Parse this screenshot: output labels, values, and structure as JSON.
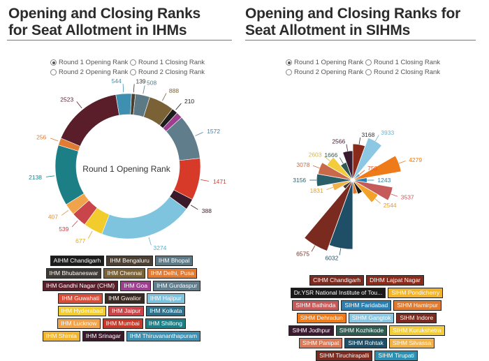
{
  "chart_data": [
    {
      "type": "donut",
      "title": "Opening and Closing Ranks for Seat Allotment in IHMs",
      "title_lines": [
        "Opening and Closing Ranks",
        "for Seat Allotment in IHMs"
      ],
      "center_label": "Round 1 Opening Rank",
      "options": [
        {
          "label": "Round 1 Opening Rank",
          "selected": true
        },
        {
          "label": "Round 1 Closing Rank",
          "selected": false
        },
        {
          "label": "Round 2 Opening Rank",
          "selected": false
        },
        {
          "label": "Round 2 Closing Rank",
          "selected": false
        }
      ],
      "series": [
        {
          "name": "IHM Bengaluru",
          "value": 139,
          "color": "#4a3f30"
        },
        {
          "name": "IHM Bhopal",
          "value": 508,
          "color": "#5b7a85"
        },
        {
          "name": "IHM Chennai",
          "value": 888,
          "color": "#7a6236"
        },
        {
          "name": "AIHM Chandigarh",
          "value": 210,
          "color": "#1c1c1c"
        },
        {
          "name": "IHM Goa",
          "value": 220,
          "color": "#9c3f8e"
        },
        {
          "name": "IHM Gurdaspur",
          "value": 1572,
          "color": "#5f7d8b"
        },
        {
          "name": "IHM Mumbai",
          "value": 1471,
          "color": "#d83a2a"
        },
        {
          "name": "IHM Srinagar",
          "value": 388,
          "color": "#3a1a2a"
        },
        {
          "name": "IHM Thiruvananthapuram",
          "value": 3274,
          "color": "#7fc4df"
        },
        {
          "name": "IHM Hajipur",
          "value": 677,
          "color": "#f2cb2c"
        },
        {
          "name": "IHM Jaipur",
          "value": 539,
          "color": "#c9454a"
        },
        {
          "name": "IHM Lucknow",
          "value": 407,
          "color": "#f0a34a"
        },
        {
          "name": "IHM Shillong",
          "value": 2138,
          "color": "#1c7f86"
        },
        {
          "name": "IHM Delhi, Pusa",
          "value": 256,
          "color": "#e27b34"
        },
        {
          "name": "IHM Gandhi Nagar (CHM)",
          "value": 2523,
          "color": "#5a1e2b"
        },
        {
          "name": "IHM Kolkata",
          "value": 544,
          "color": "#3e8fb0"
        }
      ],
      "labels": [
        {
          "text": "139",
          "color": "#333333"
        },
        {
          "text": "508",
          "color": "#5b7a85"
        },
        {
          "text": "888",
          "color": "#7a6236"
        },
        {
          "text": "210",
          "color": "#1c1c1c"
        },
        {
          "text": "1572",
          "color": "#4a7a9a"
        },
        {
          "text": "1471",
          "color": "#d83a2a"
        },
        {
          "text": "388",
          "color": "#3a1a2a"
        },
        {
          "text": "3274",
          "color": "#5aaecb"
        },
        {
          "text": "677",
          "color": "#d9aa20"
        },
        {
          "text": "539",
          "color": "#c9454a"
        },
        {
          "text": "407",
          "color": "#e0903a"
        },
        {
          "text": "2138",
          "color": "#1c7f86"
        },
        {
          "text": "256",
          "color": "#e27b34"
        },
        {
          "text": "2523",
          "color": "#5a1e2b"
        },
        {
          "text": "544",
          "color": "#3e8fb0"
        }
      ],
      "legend": [
        {
          "label": "AIHM Chandigarh",
          "color": "#1c1c1c"
        },
        {
          "label": "IHM Bengaluru",
          "color": "#4a3f30"
        },
        {
          "label": "IHM Bhopal",
          "color": "#5b7a85"
        },
        {
          "label": "IHM Bhubaneswar",
          "color": "#3f3a36"
        },
        {
          "label": "IHM Chennai",
          "color": "#7a6236"
        },
        {
          "label": "IHM Delhi, Pusa",
          "color": "#e27b34"
        },
        {
          "label": "IHM Gandhi Nagar (CHM)",
          "color": "#5a1e2b"
        },
        {
          "label": "IHM Goa",
          "color": "#9c3f8e"
        },
        {
          "label": "IHM Gurdaspur",
          "color": "#5f7d8b"
        },
        {
          "label": "IHM Guwahati",
          "color": "#d94e3b"
        },
        {
          "label": "IHM Gwalior",
          "color": "#3a2a22"
        },
        {
          "label": "IHM Hajipur",
          "color": "#7fc4df"
        },
        {
          "label": "IHM Hyderabad",
          "color": "#f2cb2c"
        },
        {
          "label": "IHM Jaipur",
          "color": "#c9454a"
        },
        {
          "label": "IHM Kolkata",
          "color": "#2e6f8a"
        },
        {
          "label": "IHM Lucknow",
          "color": "#f0a34a"
        },
        {
          "label": "IHM Mumbai",
          "color": "#c63a2a"
        },
        {
          "label": "IHM Shillong",
          "color": "#1c7f86"
        },
        {
          "label": "IHM Shimla",
          "color": "#f2b42c"
        },
        {
          "label": "IHM Srinagar",
          "color": "#3a1a2a"
        },
        {
          "label": "IHM Thiruvananthapuram",
          "color": "#3e8fb0"
        }
      ]
    },
    {
      "type": "polar_area",
      "title": "Opening and Closing Ranks for Seat Allotment in SIHMs",
      "title_lines": [
        "Opening and Closing Ranks for",
        "Seat Allotment in SIHMs"
      ],
      "options": [
        {
          "label": "Round 1 Opening Rank",
          "selected": true
        },
        {
          "label": "Round 1 Closing Rank",
          "selected": false
        },
        {
          "label": "Round 2 Opening Rank",
          "selected": false
        },
        {
          "label": "Round 2 Closing Rank",
          "selected": false
        }
      ],
      "max_value": 6575,
      "series": [
        {
          "name": "DIHM Lajpat Nagar",
          "value": 3168,
          "color": "#8a2a1a"
        },
        {
          "name": "SIHM Gangtok",
          "value": 3933,
          "color": "#8cc8e3"
        },
        {
          "name": "SIHM Faridabad",
          "value": 750,
          "color": "#6a9ab0"
        },
        {
          "name": "SIHM Dehradun",
          "value": 4279,
          "color": "#ef7a1a"
        },
        {
          "name": "SIHM Kozhikode",
          "value": 1243,
          "color": "#2a7fb0"
        },
        {
          "name": "SIHM Panipat",
          "value": 3537,
          "color": "#c45a5a"
        },
        {
          "name": "SIHM Rohtak",
          "value": 2544,
          "color": "#f2a12a"
        },
        {
          "name": "SIHM Jodhpur",
          "value": 1300,
          "color": "#1a1a1a"
        },
        {
          "name": "SIHM Hamirpur",
          "value": 1200,
          "color": "#e07a30"
        },
        {
          "name": "SIHM Tirupati",
          "value": 6032,
          "color": "#1f4f66"
        },
        {
          "name": "SIHM Tiruchirapalli",
          "value": 6575,
          "color": "#7a2a1e"
        },
        {
          "name": "SIHM Indore",
          "value": 1000,
          "color": "#4a3a32"
        },
        {
          "name": "SIHM Kurukshetra",
          "value": 1831,
          "color": "#f2b24a"
        },
        {
          "name": "SIHM Bathinda",
          "value": 3156,
          "color": "#2a5f6a"
        },
        {
          "name": "SIHM Pondicherry",
          "value": 3078,
          "color": "#c86a4a"
        },
        {
          "name": "SIHM Silvassa",
          "value": 2603,
          "color": "#f2cc3a"
        },
        {
          "name": "CIHM Chandigarh",
          "value": 1666,
          "color": "#2f5a52"
        },
        {
          "name": "Dr.YSR National Institute of Tou...",
          "value": 2566,
          "color": "#3a1a2e"
        }
      ],
      "labels": [
        {
          "text": "3168",
          "color": "#333333"
        },
        {
          "text": "3933",
          "color": "#6ab0d0"
        },
        {
          "text": "750",
          "color": "#e05a2a"
        },
        {
          "text": "4279",
          "color": "#ef7a1a"
        },
        {
          "text": "1243",
          "color": "#2a7fb0"
        },
        {
          "text": "3537",
          "color": "#c45a5a"
        },
        {
          "text": "2544",
          "color": "#e89a2a"
        },
        {
          "text": "6032",
          "color": "#1f4f66"
        },
        {
          "text": "6575",
          "color": "#7a2a1e"
        },
        {
          "text": "1831",
          "color": "#e0a030"
        },
        {
          "text": "3156",
          "color": "#2a5f6a"
        },
        {
          "text": "3078",
          "color": "#c86a4a"
        },
        {
          "text": "2603",
          "color": "#e0b82a"
        },
        {
          "text": "1666",
          "color": "#2f5a52"
        },
        {
          "text": "2566",
          "color": "#3a1a2e"
        }
      ],
      "legend": [
        {
          "label": "CIHM Chandigarh",
          "color": "#7a2a1e"
        },
        {
          "label": "DIHM Lajpat Nagar",
          "color": "#8a2a1a"
        },
        {
          "label": "Dr.YSR National Institute of Tou...",
          "color": "#1a1a1a"
        },
        {
          "label": "SIHM Pondicherry",
          "color": "#f2b42c"
        },
        {
          "label": "SIHM Bathinda",
          "color": "#c45a5a"
        },
        {
          "label": "SIHM Faridabad",
          "color": "#2a7fb0"
        },
        {
          "label": "SIHM Hamirpur",
          "color": "#e07a30"
        },
        {
          "label": "SIHM Dehradun",
          "color": "#ef7a1a"
        },
        {
          "label": "SIHM Gangtok",
          "color": "#8cc8e3"
        },
        {
          "label": "SIHM Indore",
          "color": "#7a2a1e"
        },
        {
          "label": "SIHM Jodhpur",
          "color": "#3a1a2e"
        },
        {
          "label": "SIHM Kozhikode",
          "color": "#2f5a52"
        },
        {
          "label": "SIHM Kurukshetra",
          "color": "#f2cc3a"
        },
        {
          "label": "SIHM Panipat",
          "color": "#d87a5a"
        },
        {
          "label": "SIHM Rohtak",
          "color": "#1f4f66"
        },
        {
          "label": "SIHM Silvassa",
          "color": "#f2b24a"
        },
        {
          "label": "SIHM Tiruchirapalli",
          "color": "#7a2a1e"
        },
        {
          "label": "SIHM Tirupati",
          "color": "#2a8fb0"
        }
      ]
    }
  ]
}
